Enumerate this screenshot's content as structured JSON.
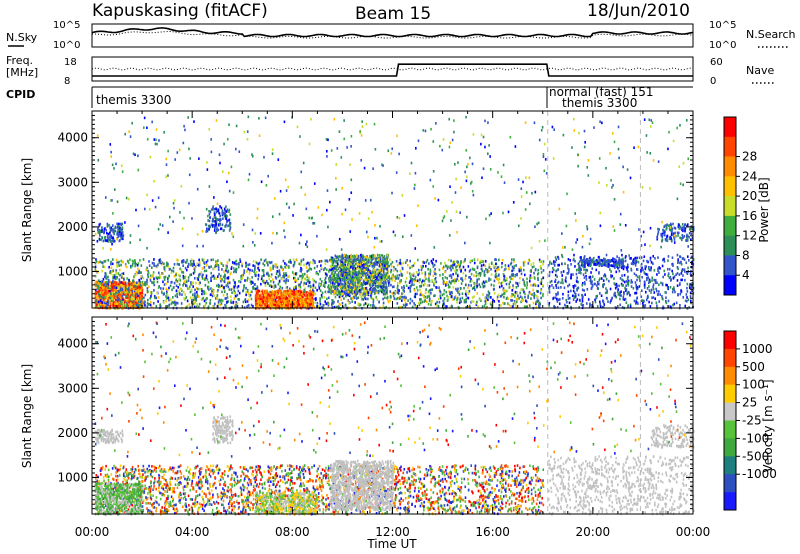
{
  "header": {
    "station": "Kapuskasing (fitACF)",
    "beam": "Beam 15",
    "date": "18/Jun/2010"
  },
  "panels": {
    "nsky": {
      "label": "N.Sky",
      "ticks": [
        "10^5",
        "10^0"
      ],
      "right_ticks": [
        "10^5",
        "10^0"
      ],
      "right_label": "N.Search"
    },
    "freq": {
      "label_line1": "Freq.",
      "label_line2": "[MHz]",
      "ticks": [
        "18",
        "8"
      ],
      "right_ticks": [
        "60",
        "0"
      ],
      "right_label": "Nave"
    },
    "cpid": {
      "label": "CPID",
      "segments": [
        "themis 3300",
        "normal (fast) 151",
        "themis 3300"
      ]
    }
  },
  "colors": {
    "power_scale": [
      "#0000ff",
      "#3355cc",
      "#2d8f57",
      "#3fae3f",
      "#c7dd2a",
      "#ffc000",
      "#ff8c00",
      "#ff4500",
      "#ff0000"
    ],
    "velocity_scale": [
      "#1a1aff",
      "#2d4fbf",
      "#1f7f7f",
      "#3fa83f",
      "#58c23a",
      "#c8c8c8",
      "#ffcc00",
      "#ff8c00",
      "#ff4500",
      "#ff0000"
    ],
    "ground_scatter": "#c0c0c0"
  },
  "chart_data": [
    {
      "type": "heatmap",
      "title": "",
      "xlabel": "Time UT",
      "ylabel": "Slant Range [km]",
      "x_ticks": [
        "00:00",
        "04:00",
        "08:00",
        "12:00",
        "16:00",
        "20:00",
        "00:00"
      ],
      "x_range_hours": [
        0,
        24
      ],
      "y_ticks": [
        "1000",
        "2000",
        "3000",
        "4000"
      ],
      "ylim": [
        180,
        4600
      ],
      "colorbar": {
        "label": "Power [dB]",
        "ticks": [
          "4",
          "8",
          "12",
          "16",
          "20",
          "24",
          "28"
        ],
        "range": [
          0,
          30
        ]
      }
    },
    {
      "type": "heatmap",
      "title": "",
      "xlabel": "Time UT",
      "ylabel": "Slant Range [km]",
      "x_ticks": [
        "00:00",
        "04:00",
        "08:00",
        "12:00",
        "16:00",
        "20:00",
        "00:00"
      ],
      "x_range_hours": [
        0,
        24
      ],
      "y_ticks": [
        "1000",
        "2000",
        "3000",
        "4000"
      ],
      "ylim": [
        180,
        4600
      ],
      "colorbar": {
        "label": "Velocity [m s⁻¹]",
        "ticks": [
          "1000",
          "500",
          "100",
          "25",
          "-25",
          "-100",
          "-500",
          "-1000"
        ],
        "range": [
          -1200,
          1200
        ]
      }
    }
  ]
}
